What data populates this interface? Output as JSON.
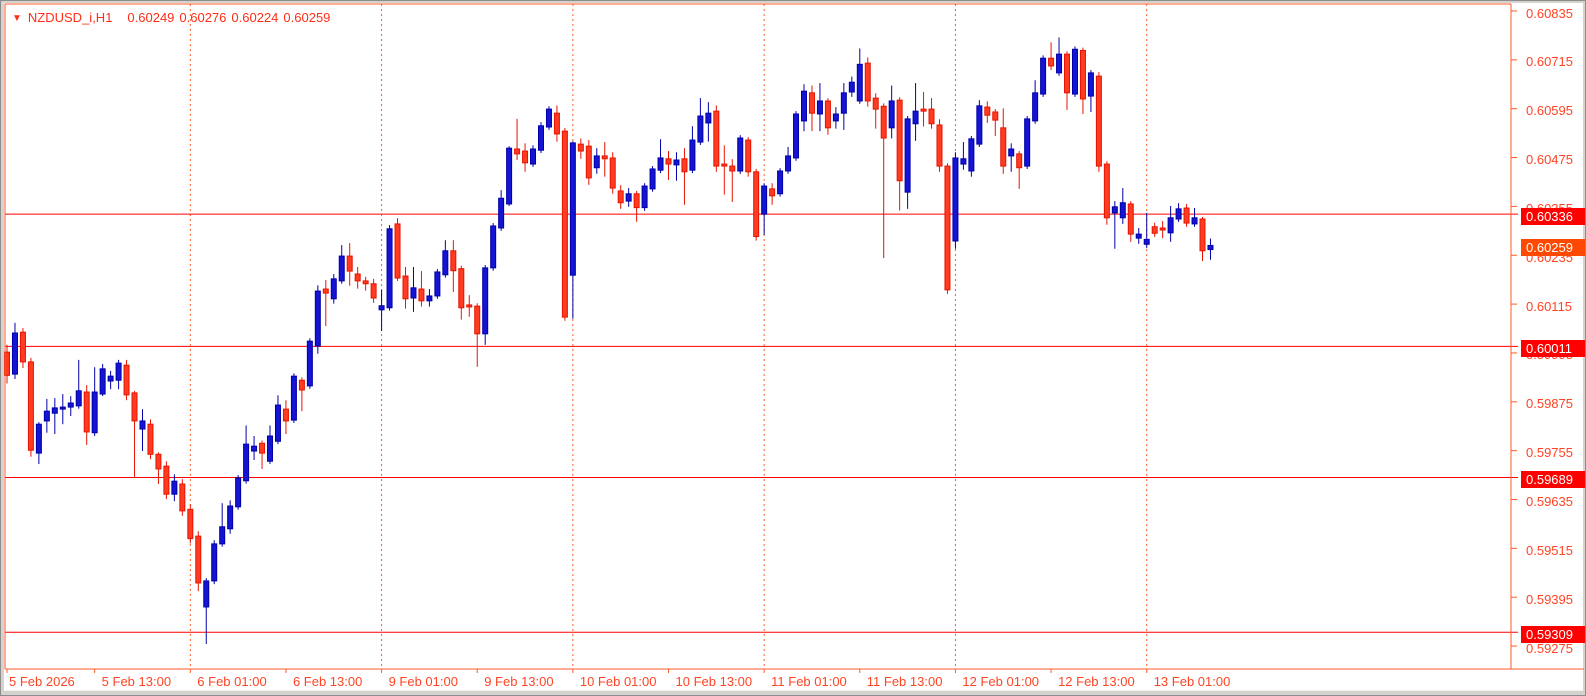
{
  "header": {
    "symbol_period": "NZDUSD_i,H1",
    "open": "0.60249",
    "high": "0.60276",
    "low": "0.60224",
    "close": "0.60259"
  },
  "colors": {
    "background": "#FFFFFF",
    "chrome": "#D6D3CE",
    "frame": "#FF5A28",
    "grid": "#FF5C1E",
    "axis_text": "#FF4424",
    "header_text": "#FF2D16",
    "hline": "#FF0000",
    "bull_fill": "#1414D2",
    "bull_stroke": "#0000A8",
    "bear_fill": "#FF3B22",
    "bear_stroke": "#E61400",
    "level_box_bg": "#FF0000",
    "current_box_bg": "#FF4800",
    "box_text": "#FFFFFF"
  },
  "price_axis": {
    "ticks": [
      "0.60835",
      "0.60715",
      "0.60595",
      "0.60475",
      "0.60355",
      "0.60235",
      "0.60115",
      "0.59995",
      "0.59875",
      "0.59755",
      "0.59635",
      "0.59515",
      "0.59395",
      "0.59275"
    ]
  },
  "time_axis": {
    "labels": [
      {
        "index": 0,
        "text": "5 Feb 2026"
      },
      {
        "index": 11,
        "text": "5 Feb 13:00"
      },
      {
        "index": 23,
        "text": "6 Feb 01:00"
      },
      {
        "index": 35,
        "text": "6 Feb 13:00"
      },
      {
        "index": 47,
        "text": "9 Feb 01:00"
      },
      {
        "index": 59,
        "text": "9 Feb 13:00"
      },
      {
        "index": 71,
        "text": "10 Feb 01:00"
      },
      {
        "index": 83,
        "text": "10 Feb 13:00"
      },
      {
        "index": 95,
        "text": "11 Feb 01:00"
      },
      {
        "index": 107,
        "text": "11 Feb 13:00"
      },
      {
        "index": 119,
        "text": "12 Feb 01:00"
      },
      {
        "index": 131,
        "text": "12 Feb 13:00"
      },
      {
        "index": 143,
        "text": "13 Feb 01:00"
      }
    ]
  },
  "levels": [
    {
      "price": 0.60336,
      "label": "0.60336"
    },
    {
      "price": 0.60011,
      "label": "0.60011"
    },
    {
      "price": 0.59689,
      "label": "0.59689"
    },
    {
      "price": 0.59309,
      "label": "0.59309"
    }
  ],
  "current_price": {
    "price": 0.60259,
    "label": "0.60259"
  },
  "chart_data": {
    "type": "candlestick",
    "title": "NZDUSD_i,H1",
    "symbol": "NZDUSD_i",
    "timeframe": "H1",
    "legend_position": "none",
    "grid": "vertical-dashed-daily",
    "y_axis": {
      "top": 0.60835,
      "bottom": 0.59275,
      "tick_step": 0.0012
    },
    "x_axis_day_gridline_indices": [
      23,
      47,
      71,
      95,
      119,
      143
    ],
    "horizontal_levels": [
      0.60336,
      0.60011,
      0.59689,
      0.59309
    ],
    "last_price": 0.60259,
    "ohlc": [
      [
        0.59997,
        0.60015,
        0.5992,
        0.5994
      ],
      [
        0.59943,
        0.60069,
        0.59931,
        0.60044
      ],
      [
        0.60046,
        0.60056,
        0.59958,
        0.59973
      ],
      [
        0.59973,
        0.59983,
        0.5974,
        0.59756
      ],
      [
        0.59749,
        0.59825,
        0.59722,
        0.5982
      ],
      [
        0.59828,
        0.59882,
        0.59799,
        0.59852
      ],
      [
        0.59847,
        0.59884,
        0.59796,
        0.5986
      ],
      [
        0.59857,
        0.59894,
        0.5982,
        0.59862
      ],
      [
        0.59862,
        0.59889,
        0.5984,
        0.59872
      ],
      [
        0.59865,
        0.59978,
        0.59858,
        0.59902
      ],
      [
        0.59899,
        0.59916,
        0.59769,
        0.59801
      ],
      [
        0.59799,
        0.5996,
        0.59791,
        0.59899
      ],
      [
        0.59894,
        0.59968,
        0.59889,
        0.59956
      ],
      [
        0.59926,
        0.59951,
        0.59906,
        0.59938
      ],
      [
        0.59928,
        0.59978,
        0.59906,
        0.5997
      ],
      [
        0.59965,
        0.59978,
        0.59879,
        0.59892
      ],
      [
        0.59897,
        0.59902,
        0.59688,
        0.59828
      ],
      [
        0.59808,
        0.59857,
        0.59754,
        0.59828
      ],
      [
        0.5982,
        0.59832,
        0.59734,
        0.59746
      ],
      [
        0.59746,
        0.59751,
        0.59673,
        0.5971
      ],
      [
        0.59717,
        0.59729,
        0.59636,
        0.59648
      ],
      [
        0.59648,
        0.59697,
        0.59631,
        0.5968
      ],
      [
        0.59673,
        0.59685,
        0.59595,
        0.59607
      ],
      [
        0.59611,
        0.59623,
        0.59527,
        0.59539
      ],
      [
        0.59545,
        0.59557,
        0.5941,
        0.5943
      ],
      [
        0.59371,
        0.59442,
        0.5928,
        0.59435
      ],
      [
        0.59435,
        0.59535,
        0.59427,
        0.59526
      ],
      [
        0.59526,
        0.59626,
        0.59519,
        0.59568
      ],
      [
        0.59563,
        0.59633,
        0.59551,
        0.59619
      ],
      [
        0.59617,
        0.59695,
        0.5961,
        0.59688
      ],
      [
        0.59681,
        0.59817,
        0.59674,
        0.59771
      ],
      [
        0.59754,
        0.59791,
        0.59732,
        0.59766
      ],
      [
        0.59773,
        0.5978,
        0.5971,
        0.59749
      ],
      [
        0.59729,
        0.59817,
        0.59722,
        0.59791
      ],
      [
        0.59778,
        0.59891,
        0.59771,
        0.59867
      ],
      [
        0.59857,
        0.59879,
        0.59796,
        0.59828
      ],
      [
        0.5983,
        0.59945,
        0.59823,
        0.59938
      ],
      [
        0.59928,
        0.59935,
        0.59852,
        0.59904
      ],
      [
        0.59914,
        0.60031,
        0.59907,
        0.60024
      ],
      [
        0.60012,
        0.60161,
        0.59993,
        0.60147
      ],
      [
        0.60152,
        0.60174,
        0.60061,
        0.60142
      ],
      [
        0.60128,
        0.60189,
        0.60116,
        0.60177
      ],
      [
        0.60172,
        0.6026,
        0.60165,
        0.60233
      ],
      [
        0.60233,
        0.60265,
        0.6016,
        0.60196
      ],
      [
        0.60189,
        0.60206,
        0.60153,
        0.60172
      ],
      [
        0.60172,
        0.60182,
        0.60148,
        0.60165
      ],
      [
        0.60165,
        0.60177,
        0.60118,
        0.6013
      ],
      [
        0.60101,
        0.6015,
        0.60049,
        0.60111
      ],
      [
        0.60106,
        0.60309,
        0.60099,
        0.603
      ],
      [
        0.60312,
        0.60326,
        0.60172,
        0.60179
      ],
      [
        0.60184,
        0.60206,
        0.60104,
        0.60128
      ],
      [
        0.6013,
        0.60206,
        0.60096,
        0.60155
      ],
      [
        0.60152,
        0.60196,
        0.60109,
        0.60123
      ],
      [
        0.60123,
        0.60152,
        0.60109,
        0.60135
      ],
      [
        0.60135,
        0.60201,
        0.60128,
        0.60194
      ],
      [
        0.60187,
        0.60272,
        0.6018,
        0.60246
      ],
      [
        0.60246,
        0.60272,
        0.60145,
        0.60197
      ],
      [
        0.60202,
        0.60209,
        0.60077,
        0.60106
      ],
      [
        0.60113,
        0.60137,
        0.60084,
        0.60108
      ],
      [
        0.6011,
        0.60117,
        0.59961,
        0.60042
      ],
      [
        0.60042,
        0.60211,
        0.60015,
        0.60204
      ],
      [
        0.60204,
        0.60314,
        0.60197,
        0.60307
      ],
      [
        0.60302,
        0.60395,
        0.60295,
        0.60375
      ],
      [
        0.60361,
        0.60503,
        0.60356,
        0.60498
      ],
      [
        0.60496,
        0.6057,
        0.60469,
        0.60484
      ],
      [
        0.60491,
        0.6051,
        0.6044,
        0.60462
      ],
      [
        0.60459,
        0.60505,
        0.60452,
        0.60496
      ],
      [
        0.60493,
        0.60562,
        0.60486,
        0.60553
      ],
      [
        0.6055,
        0.60601,
        0.60543,
        0.60594
      ],
      [
        0.60584,
        0.60603,
        0.60514,
        0.60533
      ],
      [
        0.6054,
        0.60548,
        0.60074,
        0.60083
      ],
      [
        0.60186,
        0.60515,
        0.60079,
        0.60511
      ],
      [
        0.60508,
        0.60522,
        0.60472,
        0.60491
      ],
      [
        0.60503,
        0.60518,
        0.60408,
        0.60425
      ],
      [
        0.6045,
        0.60498,
        0.60435,
        0.60479
      ],
      [
        0.60479,
        0.60513,
        0.60428,
        0.60472
      ],
      [
        0.60474,
        0.60488,
        0.60386,
        0.604
      ],
      [
        0.60393,
        0.60407,
        0.60349,
        0.60364
      ],
      [
        0.60368,
        0.604,
        0.60354,
        0.60386
      ],
      [
        0.60386,
        0.60393,
        0.60317,
        0.60352
      ],
      [
        0.60352,
        0.60412,
        0.60344,
        0.60405
      ],
      [
        0.60398,
        0.60454,
        0.60391,
        0.60447
      ],
      [
        0.60444,
        0.6052,
        0.60437,
        0.60474
      ],
      [
        0.60472,
        0.60491,
        0.6042,
        0.60459
      ],
      [
        0.60457,
        0.60488,
        0.60418,
        0.60469
      ],
      [
        0.60472,
        0.60498,
        0.60359,
        0.6044
      ],
      [
        0.60444,
        0.60552,
        0.60437,
        0.60518
      ],
      [
        0.60513,
        0.60621,
        0.60506,
        0.60577
      ],
      [
        0.6056,
        0.60611,
        0.60514,
        0.60584
      ],
      [
        0.60589,
        0.60603,
        0.6044,
        0.60454
      ],
      [
        0.60459,
        0.60505,
        0.60384,
        0.60454
      ],
      [
        0.60454,
        0.60471,
        0.60366,
        0.60442
      ],
      [
        0.60442,
        0.6053,
        0.60435,
        0.60523
      ],
      [
        0.60518,
        0.60525,
        0.60428,
        0.6044
      ],
      [
        0.6044,
        0.60447,
        0.60271,
        0.60281
      ],
      [
        0.60336,
        0.60412,
        0.60285,
        0.60405
      ],
      [
        0.60398,
        0.60412,
        0.60359,
        0.60381
      ],
      [
        0.60386,
        0.60449,
        0.60379,
        0.60442
      ],
      [
        0.60442,
        0.60501,
        0.60435,
        0.60479
      ],
      [
        0.60474,
        0.60589,
        0.60467,
        0.60582
      ],
      [
        0.60565,
        0.60655,
        0.6054,
        0.60638
      ],
      [
        0.60634,
        0.60652,
        0.6054,
        0.60584
      ],
      [
        0.60582,
        0.60658,
        0.6054,
        0.60614
      ],
      [
        0.60614,
        0.60621,
        0.60531,
        0.60548
      ],
      [
        0.60565,
        0.60599,
        0.60546,
        0.60582
      ],
      [
        0.60584,
        0.60658,
        0.60543,
        0.60634
      ],
      [
        0.60636,
        0.60674,
        0.60624,
        0.6066
      ],
      [
        0.60614,
        0.60743,
        0.60607,
        0.60704
      ],
      [
        0.60707,
        0.60721,
        0.606,
        0.60614
      ],
      [
        0.60621,
        0.60633,
        0.60546,
        0.60594
      ],
      [
        0.60601,
        0.60608,
        0.60228,
        0.60523
      ],
      [
        0.60548,
        0.60652,
        0.60522,
        0.60614
      ],
      [
        0.60616,
        0.60623,
        0.60345,
        0.60418
      ],
      [
        0.6039,
        0.60577,
        0.60349,
        0.6057
      ],
      [
        0.60558,
        0.60658,
        0.60516,
        0.60589
      ],
      [
        0.60594,
        0.60636,
        0.60551,
        0.60589
      ],
      [
        0.60594,
        0.60621,
        0.60546,
        0.60558
      ],
      [
        0.60555,
        0.60569,
        0.6044,
        0.60454
      ],
      [
        0.60454,
        0.60461,
        0.6014,
        0.6015
      ],
      [
        0.6027,
        0.60488,
        0.60251,
        0.60474
      ],
      [
        0.60459,
        0.60513,
        0.60445,
        0.60472
      ],
      [
        0.60442,
        0.60528,
        0.60428,
        0.60521
      ],
      [
        0.60508,
        0.60616,
        0.60501,
        0.60602
      ],
      [
        0.60599,
        0.60613,
        0.6056,
        0.60579
      ],
      [
        0.60587,
        0.60594,
        0.60528,
        0.60567
      ],
      [
        0.60548,
        0.60596,
        0.60435,
        0.60454
      ],
      [
        0.60479,
        0.6051,
        0.6044,
        0.60496
      ],
      [
        0.60484,
        0.60491,
        0.60398,
        0.6045
      ],
      [
        0.60454,
        0.60577,
        0.60447,
        0.6057
      ],
      [
        0.60565,
        0.60665,
        0.60558,
        0.60634
      ],
      [
        0.60631,
        0.60726,
        0.60624,
        0.60719
      ],
      [
        0.60719,
        0.60758,
        0.6069,
        0.607
      ],
      [
        0.60683,
        0.6077,
        0.60676,
        0.60729
      ],
      [
        0.60729,
        0.60736,
        0.60592,
        0.60634
      ],
      [
        0.60631,
        0.60748,
        0.60624,
        0.60741
      ],
      [
        0.60738,
        0.60745,
        0.60582,
        0.60619
      ],
      [
        0.60626,
        0.6069,
        0.60587,
        0.60683
      ],
      [
        0.60675,
        0.60685,
        0.6044,
        0.60454
      ],
      [
        0.60459,
        0.60466,
        0.6031,
        0.60327
      ],
      [
        0.60339,
        0.60368,
        0.60251,
        0.60354
      ],
      [
        0.60327,
        0.604,
        0.60312,
        0.60364
      ],
      [
        0.60361,
        0.60368,
        0.60268,
        0.60287
      ],
      [
        0.60277,
        0.60302,
        0.60263,
        0.60287
      ],
      [
        0.60262,
        0.60339,
        0.60253,
        0.60274
      ],
      [
        0.60305,
        0.60315,
        0.6028,
        0.60289
      ],
      [
        0.60302,
        0.60319,
        0.60277,
        0.60297
      ],
      [
        0.6029,
        0.60356,
        0.60268,
        0.60327
      ],
      [
        0.60324,
        0.60363,
        0.60317,
        0.60349
      ],
      [
        0.60351,
        0.60361,
        0.60305,
        0.60314
      ],
      [
        0.60312,
        0.60351,
        0.60305,
        0.60327
      ],
      [
        0.60324,
        0.60329,
        0.60221,
        0.60246
      ],
      [
        0.60249,
        0.60276,
        0.60224,
        0.60259
      ]
    ]
  }
}
